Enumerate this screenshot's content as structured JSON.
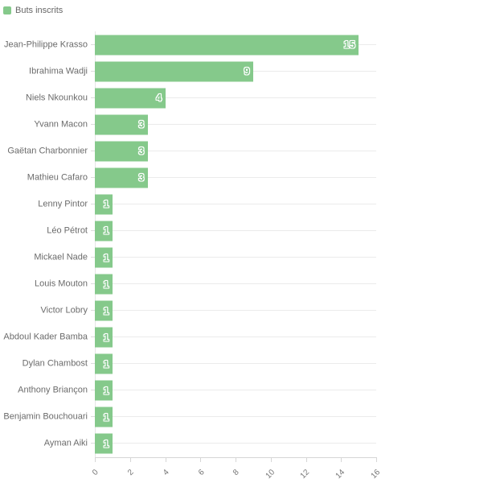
{
  "legend": {
    "label": "Buts inscrits"
  },
  "colors": {
    "bar": "#85c98b",
    "value_label_fill": "#7dc486",
    "value_label_outline": "#ffffff",
    "category_label": "#6b6b6b",
    "tick_label": "#767676",
    "grid_line": "#ebebeb",
    "axis_line": "#d6d6d6",
    "legend_text": "#666666",
    "background": "#ffffff"
  },
  "chart_data": {
    "type": "bar",
    "orientation": "horizontal",
    "title": "",
    "xlabel": "",
    "ylabel": "",
    "series_name": "Buts inscrits",
    "categories": [
      "Jean-Philippe Krasso",
      "Ibrahima Wadji",
      "Niels Nkounkou",
      "Yvann Macon",
      "Gaëtan Charbonnier",
      "Mathieu Cafaro",
      "Lenny Pintor",
      "Léo Pétrot",
      "Mickael Nade",
      "Louis Mouton",
      "Victor Lobry",
      "Abdoul Kader Bamba",
      "Dylan Chambost",
      "Anthony Briançon",
      "Benjamin Bouchouari",
      "Ayman Aiki"
    ],
    "values": [
      15,
      9,
      4,
      3,
      3,
      3,
      1,
      1,
      1,
      1,
      1,
      1,
      1,
      1,
      1,
      1
    ],
    "xlim": [
      0,
      16
    ],
    "x_ticks": [
      "0",
      "2",
      "4",
      "6",
      "8",
      "10",
      "12",
      "14",
      "16"
    ],
    "grid": "horizontal-row-lines",
    "legend_position": "top-left",
    "value_labels": "inside-end"
  }
}
